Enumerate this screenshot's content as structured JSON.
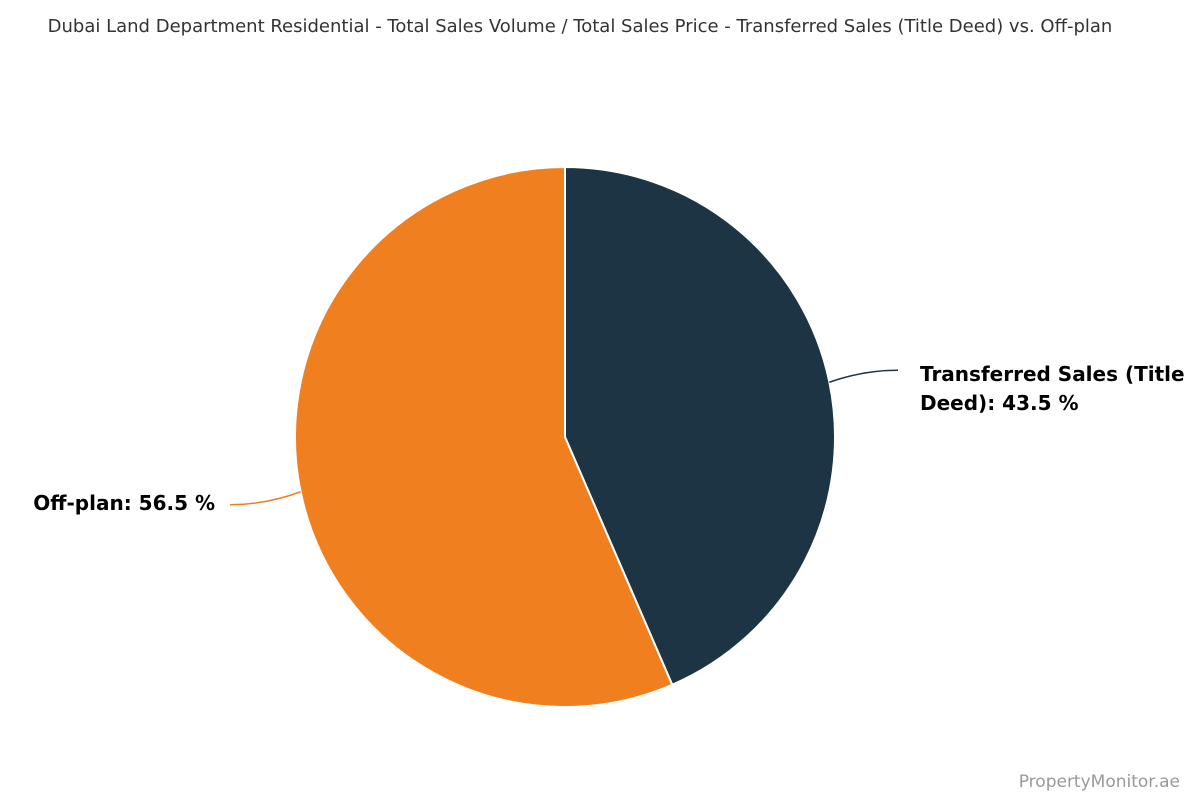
{
  "chart_data": {
    "type": "pie",
    "title": "Dubai Land Department Residential - Total Sales Volume / Total Sales Price - Transferred Sales (Title Deed) vs. Off-plan",
    "categories": [
      "Transferred Sales (Title Deed)",
      "Off-plan"
    ],
    "values": [
      43.5,
      56.5
    ],
    "value_labels": [
      "Transferred Sales (Title Deed): 43.5 %",
      "Off-plan: 56.5 %"
    ],
    "colors": [
      "#1d3444",
      "#f0801f"
    ],
    "source": "PropertyMonitor.ae"
  }
}
